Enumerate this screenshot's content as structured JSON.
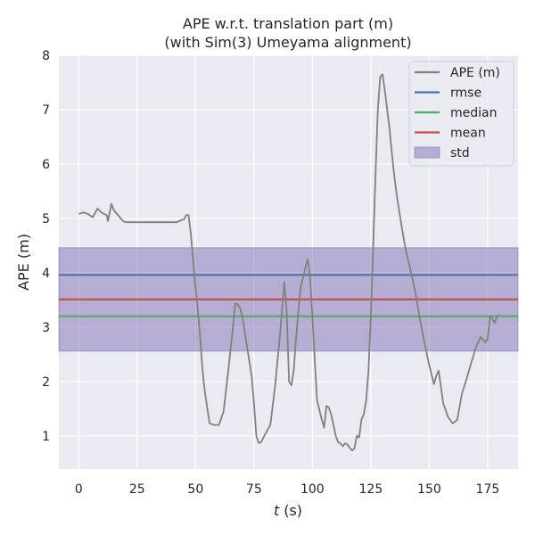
{
  "chart_data": {
    "type": "line",
    "title": "APE w.r.t. translation part (m)",
    "subtitle": "(with Sim(3) Umeyama alignment)",
    "xlabel_var": "t",
    "xlabel_unit": "(s)",
    "ylabel": "APE (m)",
    "xlim": [
      -8.5,
      188
    ],
    "ylim": [
      0.39,
      8
    ],
    "xticks": [
      0,
      25,
      50,
      75,
      100,
      125,
      150,
      175
    ],
    "yticks": [
      1,
      2,
      3,
      4,
      5,
      6,
      7,
      8
    ],
    "grid": true,
    "legend_position": "top-right",
    "colors": {
      "background": "#eaeaf2",
      "ape": "#808080",
      "rmse": "#4c72b0",
      "median": "#55a868",
      "mean": "#c44e52",
      "std": "#8172b2"
    },
    "legend": [
      {
        "label": "APE (m)",
        "kind": "line",
        "color_key": "ape"
      },
      {
        "label": "rmse",
        "kind": "line",
        "color_key": "rmse"
      },
      {
        "label": "median",
        "kind": "line",
        "color_key": "median"
      },
      {
        "label": "mean",
        "kind": "line",
        "color_key": "mean"
      },
      {
        "label": "std",
        "kind": "patch",
        "color_key": "std"
      }
    ],
    "stats": {
      "rmse": 3.96,
      "median": 3.2,
      "mean": 3.51,
      "std_low": 2.56,
      "std_high": 4.46
    },
    "series": [
      {
        "name": "APE (m)",
        "x": [
          0,
          2,
          4,
          6,
          8,
          10,
          12,
          12.5,
          13,
          14,
          15,
          17,
          19,
          20,
          25,
          30,
          35,
          40,
          42,
          44,
          45,
          46,
          47,
          48,
          49,
          50,
          51,
          52,
          53,
          54,
          56,
          58,
          60,
          62,
          64,
          66,
          67,
          68,
          69,
          70,
          72,
          74,
          75,
          76,
          77,
          78,
          80,
          82,
          84,
          86,
          88,
          89,
          90,
          91,
          92,
          93,
          94,
          95,
          96,
          97,
          98,
          99,
          100,
          101,
          102,
          104,
          105,
          106,
          107,
          108,
          109,
          110,
          111,
          112,
          113,
          114,
          115,
          116,
          117,
          118,
          119,
          120,
          121,
          122,
          123,
          124,
          125,
          126,
          127,
          128,
          129,
          130,
          131,
          132,
          133,
          134,
          135,
          136,
          138,
          140,
          142,
          144,
          146,
          148,
          150,
          152,
          153,
          154,
          156,
          158,
          160,
          161,
          162,
          164,
          166,
          168,
          170,
          172,
          174,
          175,
          176,
          177,
          178,
          179,
          180
        ],
        "y": [
          5.08,
          5.11,
          5.08,
          5.02,
          5.18,
          5.1,
          5.06,
          4.95,
          5.05,
          5.27,
          5.15,
          5.05,
          4.95,
          4.93,
          4.93,
          4.93,
          4.93,
          4.93,
          4.93,
          4.97,
          4.98,
          5.06,
          5.06,
          4.7,
          4.2,
          3.72,
          3.3,
          2.8,
          2.2,
          1.8,
          1.23,
          1.2,
          1.2,
          1.45,
          2.2,
          3.0,
          3.44,
          3.42,
          3.35,
          3.2,
          2.65,
          2.1,
          1.6,
          1.0,
          0.87,
          0.88,
          1.05,
          1.2,
          1.9,
          2.8,
          3.83,
          3.3,
          2.0,
          1.93,
          2.2,
          2.8,
          3.3,
          3.75,
          3.9,
          4.1,
          4.25,
          3.9,
          3.2,
          2.4,
          1.65,
          1.3,
          1.15,
          1.55,
          1.52,
          1.4,
          1.2,
          1.0,
          0.88,
          0.86,
          0.81,
          0.86,
          0.84,
          0.78,
          0.73,
          0.77,
          1.0,
          0.97,
          1.3,
          1.4,
          1.65,
          2.2,
          3.2,
          4.5,
          5.8,
          7.0,
          7.6,
          7.65,
          7.35,
          7.0,
          6.65,
          6.2,
          5.8,
          5.45,
          4.9,
          4.4,
          4.05,
          3.65,
          3.15,
          2.7,
          2.3,
          1.95,
          2.1,
          2.2,
          1.6,
          1.35,
          1.23,
          1.26,
          1.3,
          1.78,
          2.05,
          2.35,
          2.63,
          2.82,
          2.72,
          2.78,
          3.2,
          3.15,
          3.08,
          3.2,
          3.22
        ]
      }
    ]
  }
}
